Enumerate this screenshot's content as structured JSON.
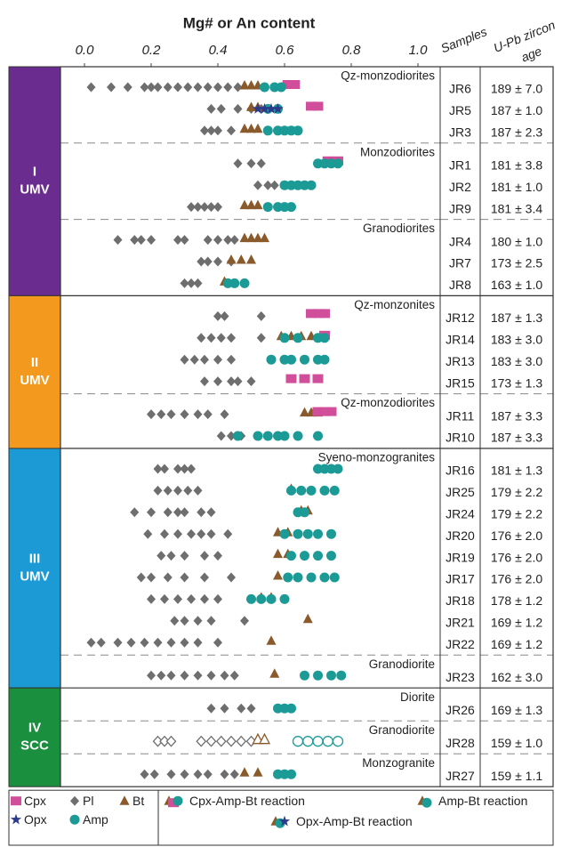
{
  "chart_data": {
    "type": "strip",
    "title": "Mg# or An content",
    "xlim": [
      0,
      1
    ],
    "xticks": [
      {
        "value": 0,
        "label": "0.0"
      },
      0.2,
      0.4,
      0.6,
      0.8,
      {
        "value": 1,
        "label": "1.0"
      }
    ],
    "columns": [
      "Samples",
      [
        "U-Pb zircon",
        "age"
      ]
    ],
    "minerals": [
      {
        "name": "Cpx",
        "color": "#d14e9a",
        "marker": "square"
      },
      {
        "name": "Opx",
        "color": "#2b3a8c",
        "marker": "star"
      },
      {
        "name": "Pl",
        "color": "#6e6e6e",
        "marker": "diamond"
      },
      {
        "name": "Amp",
        "color": "#1b9a96",
        "marker": "circle"
      },
      {
        "name": "Bt",
        "color": "#8a5a2b",
        "marker": "triangle"
      }
    ],
    "reactions": [
      "Cpx-Amp-Bt reaction",
      "Amp-Bt reaction",
      "Opx-Amp-Bt reaction"
    ],
    "groups": [
      {
        "label": "I",
        "sublabel": "UMV",
        "color": "#6a2c8e",
        "suites": [
          {
            "name": "Qz-monzodiorites",
            "samples": [
              {
                "name": "JR6",
                "age": "189 ± 7.0",
                "values": {
                  "Pl": [
                    0.02,
                    0.08,
                    0.13,
                    0.18,
                    0.2,
                    0.22,
                    0.25,
                    0.28,
                    0.31,
                    0.34,
                    0.37,
                    0.4,
                    0.43,
                    0.46
                  ],
                  "Bt": [
                    0.48,
                    0.5,
                    0.52
                  ],
                  "Amp": [
                    0.54,
                    0.57,
                    0.59
                  ],
                  "Cpx": [
                    0.61,
                    0.63
                  ]
                }
              },
              {
                "name": "JR5",
                "age": "187 ± 1.0",
                "values": {
                  "Pl": [
                    0.38,
                    0.41,
                    0.46,
                    0.5,
                    0.53
                  ],
                  "Bt": [
                    0.5,
                    0.52
                  ],
                  "Opx": [
                    0.52,
                    0.54,
                    0.56,
                    0.58
                  ],
                  "Amp": [
                    0.55,
                    0.58
                  ],
                  "Cpx": [
                    0.68,
                    0.7
                  ]
                }
              },
              {
                "name": "JR3",
                "age": "187 ± 2.3",
                "values": {
                  "Pl": [
                    0.36,
                    0.38,
                    0.4,
                    0.44
                  ],
                  "Bt": [
                    0.48,
                    0.5,
                    0.52
                  ],
                  "Amp": [
                    0.55,
                    0.58,
                    0.6,
                    0.62,
                    0.64
                  ]
                }
              }
            ]
          },
          {
            "name": "Monzodiorites",
            "samples": [
              {
                "name": "JR1",
                "age": "181 ± 3.8",
                "values": {
                  "Pl": [
                    0.46,
                    0.5,
                    0.53
                  ],
                  "Amp": [
                    0.7,
                    0.72,
                    0.74,
                    0.76
                  ],
                  "Cpx": [
                    0.73,
                    0.76
                  ]
                }
              },
              {
                "name": "JR2",
                "age": "181 ± 1.0",
                "values": {
                  "Pl": [
                    0.52,
                    0.55,
                    0.57
                  ],
                  "Amp": [
                    0.6,
                    0.62,
                    0.64,
                    0.66,
                    0.68
                  ]
                }
              },
              {
                "name": "JR9",
                "age": "181 ± 3.4",
                "values": {
                  "Pl": [
                    0.32,
                    0.34,
                    0.36,
                    0.38,
                    0.4
                  ],
                  "Bt": [
                    0.48,
                    0.5,
                    0.52
                  ],
                  "Amp": [
                    0.55,
                    0.58,
                    0.6,
                    0.62
                  ]
                }
              }
            ]
          },
          {
            "name": "Granodiorites",
            "samples": [
              {
                "name": "JR4",
                "age": "180 ± 1.0",
                "values": {
                  "Pl": [
                    0.1,
                    0.15,
                    0.17,
                    0.2,
                    0.28,
                    0.3,
                    0.37,
                    0.4,
                    0.43,
                    0.45
                  ],
                  "Bt": [
                    0.48,
                    0.5,
                    0.52,
                    0.54
                  ]
                }
              },
              {
                "name": "JR7",
                "age": "173 ± 2.5",
                "values": {
                  "Pl": [
                    0.35,
                    0.37,
                    0.4,
                    0.44
                  ],
                  "Bt": [
                    0.44,
                    0.47,
                    0.5
                  ]
                }
              },
              {
                "name": "JR8",
                "age": "163 ± 1.0",
                "values": {
                  "Pl": [
                    0.3,
                    0.32,
                    0.34
                  ],
                  "Bt": [
                    0.42
                  ],
                  "Amp": [
                    0.43,
                    0.45,
                    0.48
                  ]
                }
              }
            ]
          }
        ]
      },
      {
        "label": "II",
        "sublabel": "UMV",
        "color": "#f39a1e",
        "suites": [
          {
            "name": "Qz-monzonites",
            "samples": [
              {
                "name": "JR12",
                "age": "187 ± 1.3",
                "values": {
                  "Pl": [
                    0.4,
                    0.42,
                    0.53
                  ],
                  "Cpx": [
                    0.68,
                    0.7,
                    0.72
                  ]
                }
              },
              {
                "name": "JR14",
                "age": "183 ± 3.0",
                "values": {
                  "Pl": [
                    0.35,
                    0.38,
                    0.41,
                    0.44,
                    0.53
                  ],
                  "Bt": [
                    0.59,
                    0.62,
                    0.65,
                    0.68
                  ],
                  "Amp": [
                    0.6,
                    0.64,
                    0.7,
                    0.72
                  ],
                  "Cpx": [
                    0.72
                  ]
                }
              },
              {
                "name": "JR13",
                "age": "183 ± 3.0",
                "values": {
                  "Pl": [
                    0.3,
                    0.33,
                    0.36,
                    0.4,
                    0.44
                  ],
                  "Amp": [
                    0.56,
                    0.6,
                    0.62,
                    0.66,
                    0.7,
                    0.72
                  ]
                }
              },
              {
                "name": "JR15",
                "age": "173 ± 1.3",
                "values": {
                  "Pl": [
                    0.36,
                    0.4,
                    0.44,
                    0.46,
                    0.5
                  ],
                  "Cpx": [
                    0.62,
                    0.66,
                    0.7
                  ]
                }
              }
            ]
          },
          {
            "name": "Qz-monzodiorites",
            "samples": [
              {
                "name": "JR11",
                "age": "187 ± 3.3",
                "values": {
                  "Pl": [
                    0.2,
                    0.23,
                    0.26,
                    0.3,
                    0.34,
                    0.37,
                    0.42
                  ],
                  "Bt": [
                    0.66,
                    0.68,
                    0.7
                  ],
                  "Cpx": [
                    0.7,
                    0.72,
                    0.74
                  ]
                }
              },
              {
                "name": "JR10",
                "age": "187 ± 3.3",
                "values": {
                  "Pl": [
                    0.41,
                    0.44,
                    0.47
                  ],
                  "Amp": [
                    0.46,
                    0.52,
                    0.55,
                    0.58,
                    0.6,
                    0.64,
                    0.7
                  ]
                }
              }
            ]
          }
        ]
      },
      {
        "label": "III",
        "sublabel": "UMV",
        "color": "#1b9ad6",
        "suites": [
          {
            "name": "Syeno-monzogranites",
            "samples": [
              {
                "name": "JR16",
                "age": "181 ± 1.3",
                "values": {
                  "Pl": [
                    0.22,
                    0.24,
                    0.28,
                    0.3,
                    0.32
                  ],
                  "Amp": [
                    0.7,
                    0.72,
                    0.74,
                    0.76
                  ]
                }
              },
              {
                "name": "JR25",
                "age": "179 ± 2.2",
                "values": {
                  "Pl": [
                    0.22,
                    0.25,
                    0.28,
                    0.31,
                    0.34
                  ],
                  "Bt": [
                    0.62
                  ],
                  "Amp": [
                    0.62,
                    0.65,
                    0.68,
                    0.72,
                    0.75
                  ]
                }
              },
              {
                "name": "JR24",
                "age": "179 ± 2.2",
                "values": {
                  "Pl": [
                    0.15,
                    0.2,
                    0.25,
                    0.28,
                    0.3,
                    0.35,
                    0.38
                  ],
                  "Bt": [
                    0.65,
                    0.67
                  ],
                  "Amp": [
                    0.64,
                    0.66
                  ]
                }
              },
              {
                "name": "JR20",
                "age": "176 ± 2.0",
                "values": {
                  "Pl": [
                    0.19,
                    0.24,
                    0.28,
                    0.32,
                    0.35,
                    0.38,
                    0.43
                  ],
                  "Bt": [
                    0.58,
                    0.61
                  ],
                  "Amp": [
                    0.6,
                    0.64,
                    0.67,
                    0.7,
                    0.74
                  ]
                }
              },
              {
                "name": "JR19",
                "age": "176 ± 2.0",
                "values": {
                  "Pl": [
                    0.23,
                    0.26,
                    0.3,
                    0.36,
                    0.4
                  ],
                  "Bt": [
                    0.58,
                    0.61
                  ],
                  "Amp": [
                    0.62,
                    0.66,
                    0.7,
                    0.74
                  ]
                }
              },
              {
                "name": "JR17",
                "age": "176 ± 2.0",
                "values": {
                  "Pl": [
                    0.17,
                    0.2,
                    0.25,
                    0.3,
                    0.36,
                    0.44
                  ],
                  "Bt": [
                    0.58
                  ],
                  "Amp": [
                    0.61,
                    0.64,
                    0.68,
                    0.72,
                    0.75
                  ]
                }
              },
              {
                "name": "JR18",
                "age": "178 ± 1.2",
                "values": {
                  "Pl": [
                    0.2,
                    0.24,
                    0.28,
                    0.32,
                    0.36,
                    0.4
                  ],
                  "Bt": [
                    0.53,
                    0.56
                  ],
                  "Amp": [
                    0.5,
                    0.53,
                    0.56,
                    0.6
                  ]
                }
              },
              {
                "name": "JR21",
                "age": "169 ± 1.2",
                "values": {
                  "Pl": [
                    0.27,
                    0.3,
                    0.34,
                    0.38,
                    0.48
                  ],
                  "Bt": [
                    0.67
                  ]
                }
              },
              {
                "name": "JR22",
                "age": "169 ± 1.2",
                "values": {
                  "Pl": [
                    0.02,
                    0.05,
                    0.1,
                    0.14,
                    0.18,
                    0.22,
                    0.26,
                    0.3,
                    0.34,
                    0.4
                  ],
                  "Bt": [
                    0.56
                  ]
                }
              }
            ]
          },
          {
            "name": "Granodiorite",
            "samples": [
              {
                "name": "JR23",
                "age": "162 ± 3.0",
                "values": {
                  "Pl": [
                    0.2,
                    0.23,
                    0.26,
                    0.3,
                    0.34,
                    0.38,
                    0.42,
                    0.45
                  ],
                  "Bt": [
                    0.57
                  ],
                  "Amp": [
                    0.66,
                    0.7,
                    0.74,
                    0.77
                  ]
                }
              }
            ]
          }
        ]
      },
      {
        "label": "IV",
        "sublabel": "SCC",
        "color": "#1a8f3e",
        "suites": [
          {
            "name": "Diorite",
            "samples": [
              {
                "name": "JR26",
                "age": "169 ± 1.3",
                "values": {
                  "Pl": [
                    0.38,
                    0.42,
                    0.47,
                    0.5
                  ],
                  "Amp": [
                    0.58,
                    0.6,
                    0.62
                  ]
                }
              }
            ]
          },
          {
            "name": "Granodiorite",
            "samples": [
              {
                "name": "JR28",
                "age": "159 ± 1.0",
                "open": true,
                "values": {
                  "Pl": [
                    0.22,
                    0.24,
                    0.26,
                    0.35,
                    0.38,
                    0.41,
                    0.44,
                    0.47,
                    0.5
                  ],
                  "Bt": [
                    0.52,
                    0.54
                  ],
                  "Amp": [
                    0.64,
                    0.67,
                    0.7,
                    0.73,
                    0.76
                  ]
                }
              }
            ]
          },
          {
            "name": "Monzogranite",
            "samples": [
              {
                "name": "JR27",
                "age": "159 ± 1.1",
                "values": {
                  "Pl": [
                    0.18,
                    0.21,
                    0.26,
                    0.3,
                    0.34,
                    0.37,
                    0.42,
                    0.45
                  ],
                  "Bt": [
                    0.48,
                    0.52
                  ],
                  "Amp": [
                    0.58,
                    0.6,
                    0.62
                  ]
                }
              }
            ]
          }
        ]
      }
    ]
  }
}
